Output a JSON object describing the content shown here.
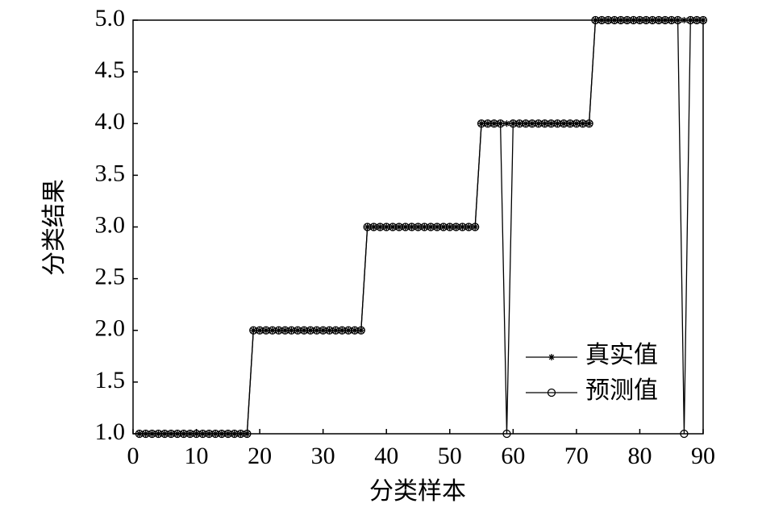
{
  "chart_data": {
    "type": "line",
    "x_label": "分类样本",
    "y_label": "分类结果",
    "x": [
      1,
      2,
      3,
      4,
      5,
      6,
      7,
      8,
      9,
      10,
      11,
      12,
      13,
      14,
      15,
      16,
      17,
      18,
      19,
      20,
      21,
      22,
      23,
      24,
      25,
      26,
      27,
      28,
      29,
      30,
      31,
      32,
      33,
      34,
      35,
      36,
      37,
      38,
      39,
      40,
      41,
      42,
      43,
      44,
      45,
      46,
      47,
      48,
      49,
      50,
      51,
      52,
      53,
      54,
      55,
      56,
      57,
      58,
      59,
      60,
      61,
      62,
      63,
      64,
      65,
      66,
      67,
      68,
      69,
      70,
      71,
      72,
      73,
      74,
      75,
      76,
      77,
      78,
      79,
      80,
      81,
      82,
      83,
      84,
      85,
      86,
      87,
      88,
      89,
      90
    ],
    "series": [
      {
        "name": "真实值",
        "color": "#000000",
        "marker": "star",
        "values": [
          1,
          1,
          1,
          1,
          1,
          1,
          1,
          1,
          1,
          1,
          1,
          1,
          1,
          1,
          1,
          1,
          1,
          1,
          2,
          2,
          2,
          2,
          2,
          2,
          2,
          2,
          2,
          2,
          2,
          2,
          2,
          2,
          2,
          2,
          2,
          2,
          3,
          3,
          3,
          3,
          3,
          3,
          3,
          3,
          3,
          3,
          3,
          3,
          3,
          3,
          3,
          3,
          3,
          3,
          4,
          4,
          4,
          4,
          4,
          4,
          4,
          4,
          4,
          4,
          4,
          4,
          4,
          4,
          4,
          4,
          4,
          4,
          5,
          5,
          5,
          5,
          5,
          5,
          5,
          5,
          5,
          5,
          5,
          5,
          5,
          5,
          5,
          5,
          5,
          5
        ]
      },
      {
        "name": "预测值",
        "color": "#000000",
        "marker": "circle",
        "values": [
          1,
          1,
          1,
          1,
          1,
          1,
          1,
          1,
          1,
          1,
          1,
          1,
          1,
          1,
          1,
          1,
          1,
          1,
          2,
          2,
          2,
          2,
          2,
          2,
          2,
          2,
          2,
          2,
          2,
          2,
          2,
          2,
          2,
          2,
          2,
          2,
          3,
          3,
          3,
          3,
          3,
          3,
          3,
          3,
          3,
          3,
          3,
          3,
          3,
          3,
          3,
          3,
          3,
          3,
          4,
          4,
          4,
          4,
          1,
          4,
          4,
          4,
          4,
          4,
          4,
          4,
          4,
          4,
          4,
          4,
          4,
          4,
          5,
          5,
          5,
          5,
          5,
          5,
          5,
          5,
          5,
          5,
          5,
          5,
          5,
          5,
          1,
          5,
          5,
          5
        ]
      }
    ],
    "xlim": [
      0,
      90
    ],
    "xticks": [
      0,
      10,
      20,
      30,
      40,
      50,
      60,
      70,
      80,
      90
    ],
    "ylim": [
      1,
      5
    ],
    "yticks": [
      {
        "value": 1,
        "label": "1.0"
      },
      1.5,
      {
        "value": 2,
        "label": "2.0"
      },
      2.5,
      {
        "value": 3,
        "label": "3.0"
      },
      3.5,
      {
        "value": 4,
        "label": "4.0"
      },
      4.5,
      {
        "value": 5,
        "label": "5.0"
      }
    ],
    "legend": "lower right"
  }
}
